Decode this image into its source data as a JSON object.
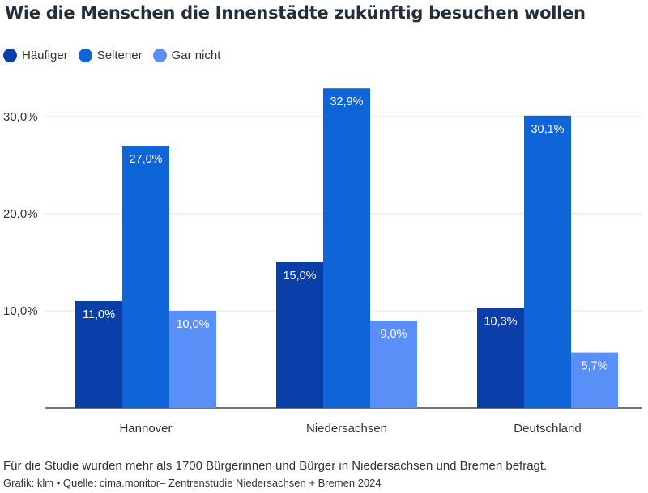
{
  "chart_data": {
    "type": "bar",
    "title": "Wie die Menschen die Innenstädte zukünftig besuchen wollen",
    "categories": [
      "Hannover",
      "Niedersachsen",
      "Deutschland"
    ],
    "series": [
      {
        "name": "Häufiger",
        "color": "#0a3ea8",
        "values": [
          11.0,
          15.0,
          10.3
        ],
        "labels": [
          "11,0%",
          "15,0%",
          "10,3%"
        ]
      },
      {
        "name": "Seltener",
        "color": "#0f64d8",
        "values": [
          27.0,
          32.9,
          30.1
        ],
        "labels": [
          "27,0%",
          "32,9%",
          "30,1%"
        ]
      },
      {
        "name": "Gar nicht",
        "color": "#5a8ff8",
        "values": [
          10.0,
          9.0,
          5.7
        ],
        "labels": [
          "10,0%",
          "9,0%",
          "5,7%"
        ]
      }
    ],
    "yticks": [
      10,
      20,
      30
    ],
    "ytick_labels": [
      "10,0%",
      "20,0%",
      "30,0%"
    ],
    "ylim": [
      0,
      33
    ],
    "grid": true,
    "legend_position": "top-left",
    "xlabel": "",
    "ylabel": ""
  },
  "note": "Für die Studie wurden mehr als 1700 Bürgerinnen und Bürger in Niedersachsen und Bremen befragt.",
  "source": "Grafik: klm • Quelle: cima.monitor– Zentrenstudie Niedersachsen + Bremen 2024"
}
